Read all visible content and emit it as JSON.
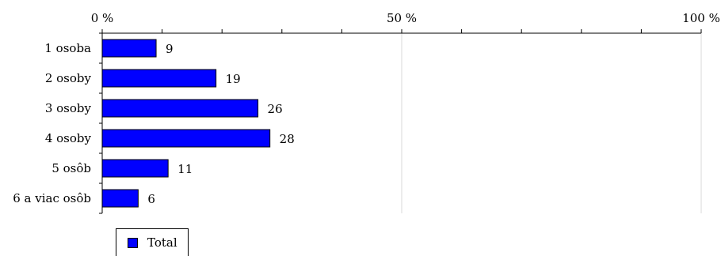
{
  "chart_data": {
    "type": "bar",
    "orientation": "horizontal",
    "categories": [
      "1 osoba",
      "2 osoby",
      "3 osoby",
      "4 osoby",
      "5 osôb",
      "6 a viac osôb"
    ],
    "series": [
      {
        "name": "Total",
        "values": [
          9,
          19,
          26,
          28,
          11,
          6
        ],
        "color": "#0000ff"
      }
    ],
    "data_labels": [
      "9",
      "19",
      "26",
      "28",
      "11",
      "6"
    ],
    "x_ticks": [
      0,
      50,
      100
    ],
    "x_tick_labels": [
      "0 %",
      "50 %",
      "100 %"
    ],
    "xlim": [
      0,
      100
    ],
    "x_axis_position": "top",
    "grid": true,
    "legend_position": "bottom-left"
  },
  "legend": {
    "label": "Total"
  },
  "colors": {
    "bar": "#0000ff",
    "gridline": "#d9d9d9",
    "axis": "#000000"
  }
}
